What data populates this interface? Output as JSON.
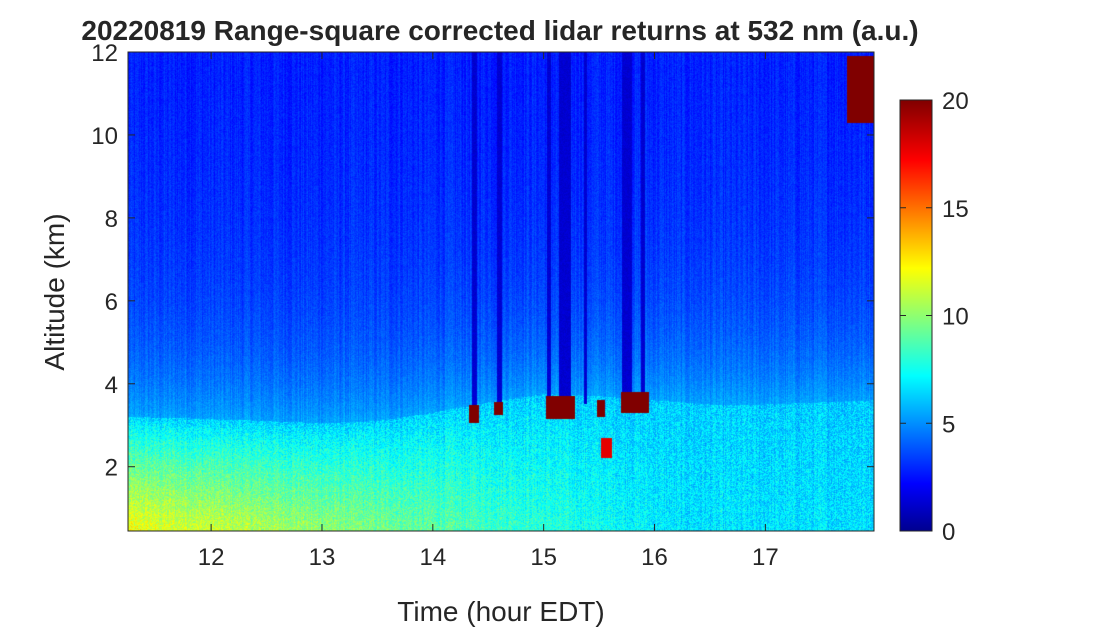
{
  "chart_data": {
    "type": "heatmap",
    "title": "20220819  Range-square corrected lidar returns at 532 nm (a.u.)",
    "xlabel": "Time (hour EDT)",
    "ylabel": "Altitude (km)",
    "xlim": [
      11.25,
      17.98
    ],
    "ylim": [
      0.45,
      12.0
    ],
    "xticks": [
      12,
      13,
      14,
      15,
      16,
      17
    ],
    "yticks": [
      2,
      4,
      6,
      8,
      10,
      12
    ],
    "xtick_labels": [
      "12",
      "13",
      "14",
      "15",
      "16",
      "17"
    ],
    "ytick_labels": [
      "2",
      "4",
      "6",
      "8",
      "10",
      "12"
    ],
    "colorbar": {
      "colormap": "jet",
      "range": [
        0,
        20
      ],
      "ticks": [
        0,
        5,
        10,
        15,
        20
      ],
      "tick_labels": [
        "0",
        "5",
        "10",
        "15",
        "20"
      ]
    },
    "features": {
      "free_troposphere_value": 3.5,
      "boundary_layer_top_km": [
        [
          11.25,
          3.2
        ],
        [
          12.0,
          3.15
        ],
        [
          12.5,
          3.1
        ],
        [
          13.0,
          3.05
        ],
        [
          13.5,
          3.1
        ],
        [
          14.0,
          3.3
        ],
        [
          14.5,
          3.55
        ],
        [
          15.0,
          3.75
        ],
        [
          15.5,
          3.7
        ],
        [
          16.0,
          3.6
        ],
        [
          16.5,
          3.5
        ],
        [
          17.0,
          3.5
        ],
        [
          17.5,
          3.55
        ],
        [
          17.98,
          3.6
        ]
      ],
      "surface_layer_value_early": 13,
      "surface_layer_value_late": 7,
      "cloud_patches": [
        {
          "t0": 14.33,
          "t1": 14.42,
          "z0": 3.05,
          "z1": 3.5,
          "value": 20
        },
        {
          "t0": 14.55,
          "t1": 14.63,
          "z0": 3.25,
          "z1": 3.55,
          "value": 20
        },
        {
          "t0": 15.02,
          "t1": 15.28,
          "z0": 3.15,
          "z1": 3.7,
          "value": 20
        },
        {
          "t0": 15.48,
          "t1": 15.55,
          "z0": 3.2,
          "z1": 3.6,
          "value": 20
        },
        {
          "t0": 15.52,
          "t1": 15.62,
          "z0": 2.2,
          "z1": 2.7,
          "value": 18
        },
        {
          "t0": 15.7,
          "t1": 15.95,
          "z0": 3.3,
          "z1": 3.8,
          "value": 20
        },
        {
          "t0": 17.74,
          "t1": 17.98,
          "z0": 10.3,
          "z1": 11.9,
          "value": 20
        }
      ],
      "attenuated_columns": [
        {
          "t0": 14.35,
          "t1": 14.4
        },
        {
          "t0": 14.58,
          "t1": 14.62
        },
        {
          "t0": 15.03,
          "t1": 15.07
        },
        {
          "t0": 15.14,
          "t1": 15.25
        },
        {
          "t0": 15.36,
          "t1": 15.39
        },
        {
          "t0": 15.71,
          "t1": 15.8
        },
        {
          "t0": 15.88,
          "t1": 15.91
        }
      ]
    }
  }
}
